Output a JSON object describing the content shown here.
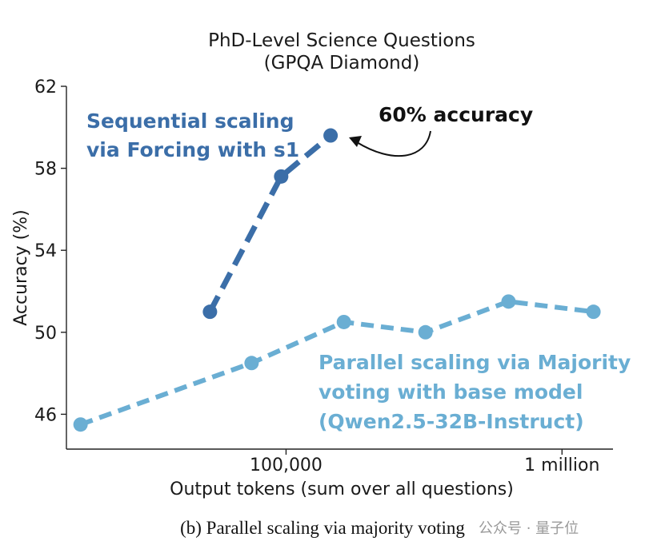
{
  "chart_data": {
    "type": "line",
    "title": "PhD-Level Science Questions",
    "subtitle": "(GPQA Diamond)",
    "xlabel": "Output tokens (sum over all questions)",
    "ylabel": "Accuracy (%)",
    "xscale": "log",
    "ylim": [
      44.3,
      62
    ],
    "xlim": [
      16000,
      1530000
    ],
    "yticks": [
      46,
      50,
      54,
      58,
      62
    ],
    "xticks": [
      {
        "value": 100000,
        "label": "100,000"
      },
      {
        "value": 1000000,
        "label": "1 million"
      }
    ],
    "grid": false,
    "series": [
      {
        "name": "Sequential scaling via Forcing with s1",
        "color": "#3b6ea8",
        "style": "dashed",
        "points": [
          {
            "x": 53000,
            "y": 51.0
          },
          {
            "x": 96000,
            "y": 57.6
          },
          {
            "x": 145000,
            "y": 59.6
          }
        ]
      },
      {
        "name": "Parallel scaling via Majority voting with base model (Qwen2.5-32B-Instruct)",
        "color": "#6aaed3",
        "style": "dashed",
        "points": [
          {
            "x": 18000,
            "y": 45.5
          },
          {
            "x": 75000,
            "y": 48.5
          },
          {
            "x": 162000,
            "y": 50.5
          },
          {
            "x": 320000,
            "y": 50.0
          },
          {
            "x": 640000,
            "y": 51.5
          },
          {
            "x": 1300000,
            "y": 51.0
          }
        ]
      }
    ],
    "annotations": {
      "sequential_label": [
        "Sequential scaling",
        "via Forcing with s1"
      ],
      "parallel_label": [
        "Parallel scaling via Majority",
        "voting with base model",
        "(Qwen2.5-32B-Instruct)"
      ],
      "accuracy_callout": "60% accuracy"
    }
  },
  "caption": "(b) Parallel scaling via majority voting",
  "watermark": "公众号 · 量子位"
}
